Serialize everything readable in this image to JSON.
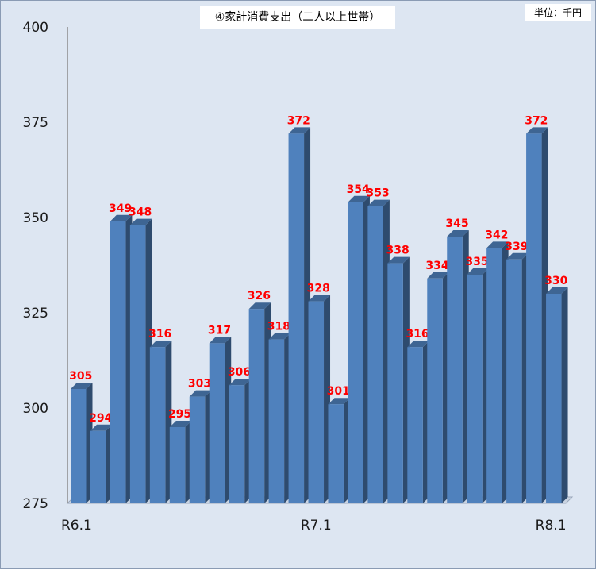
{
  "chart_data": {
    "type": "bar",
    "title": "④家計消費支出（二人以上世帯）",
    "unit": "単位：千円",
    "ylim": [
      275,
      400
    ],
    "yticks": [
      275,
      300,
      325,
      350,
      375,
      400
    ],
    "categories": [
      "R6.1",
      "",
      "",
      "",
      "",
      "",
      "",
      "",
      "",
      "",
      "",
      "",
      "R7.1",
      "",
      "",
      "",
      "",
      "",
      "",
      "",
      "",
      "",
      "",
      "",
      "R8.1"
    ],
    "values": [
      305,
      294,
      349,
      348,
      316,
      295,
      303,
      317,
      306,
      326,
      318,
      372,
      328,
      301,
      354,
      353,
      338,
      316,
      334,
      345,
      335,
      342,
      339,
      372,
      330
    ],
    "x_tick_labels": [
      "R6.1",
      "R7.1",
      "R8.1"
    ],
    "bar_color": "#4f81bd",
    "label_color": "#ff0000",
    "background_color": "#dde6f2",
    "grid": false
  }
}
